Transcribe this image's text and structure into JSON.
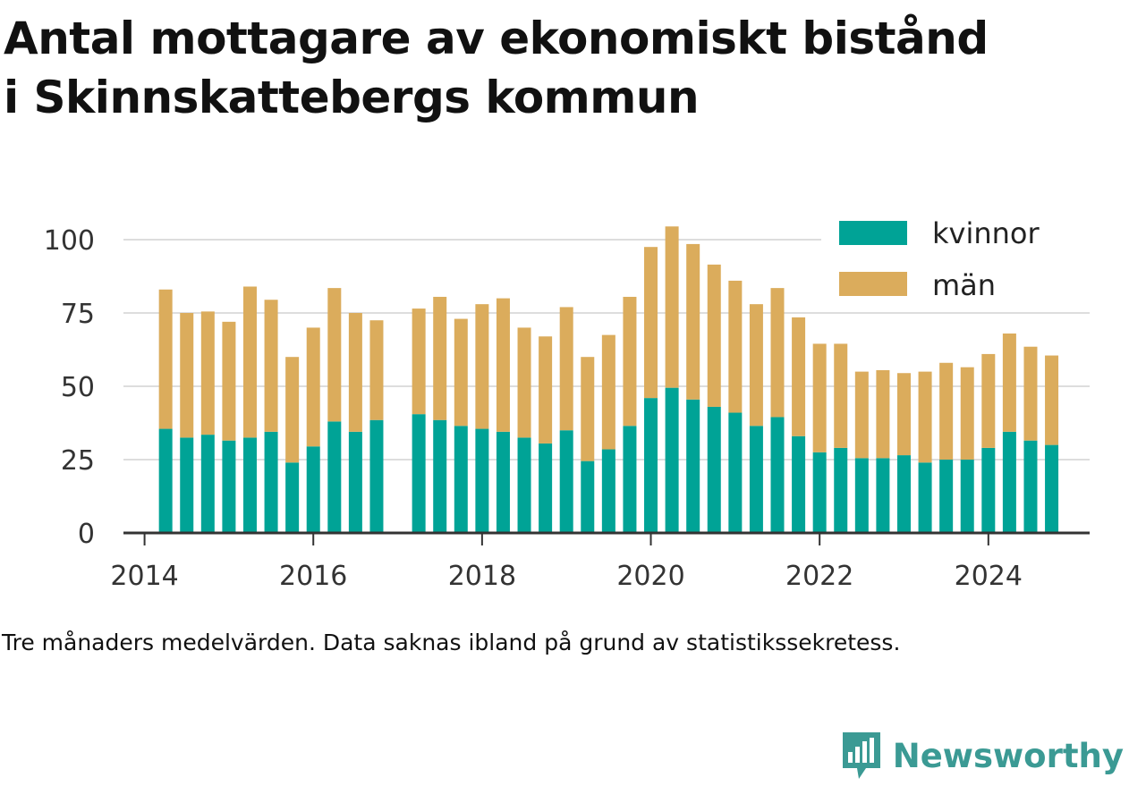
{
  "title": {
    "line1": "Antal mottagare av ekonomiskt bistånd",
    "line2": "i Skinnskattebergs kommun"
  },
  "note": "Tre månaders medelvärden. Data saknas ibland på grund av statistikssekretess.",
  "brand": {
    "name": "Newsworthy",
    "icon": "newsworthy-chat-bars-icon"
  },
  "colors": {
    "kvinnor": "#00a396",
    "man": "#dbac5c",
    "grid": "#dddddd",
    "axis": "#333333",
    "brand": "#3b9a94"
  },
  "chart_data": {
    "type": "bar",
    "stacked": true,
    "title": "",
    "xlabel": "",
    "ylabel": "",
    "ylim": [
      0,
      110
    ],
    "xlim": [
      2013.75,
      2025.2
    ],
    "yticks": [
      0,
      25,
      50,
      75,
      100
    ],
    "xticks": [
      "2014",
      "2016",
      "2018",
      "2020",
      "2022",
      "2024"
    ],
    "grid": true,
    "legend_position": "top-right",
    "x": [
      2014.25,
      2014.5,
      2014.75,
      2015.0,
      2015.25,
      2015.5,
      2015.75,
      2016.0,
      2016.25,
      2016.5,
      2016.75,
      2017.25,
      2017.5,
      2017.75,
      2018.0,
      2018.25,
      2018.5,
      2018.75,
      2019.0,
      2019.25,
      2019.5,
      2019.75,
      2020.0,
      2020.25,
      2020.5,
      2020.75,
      2021.0,
      2021.25,
      2021.5,
      2021.75,
      2022.0,
      2022.25,
      2022.5,
      2022.75,
      2023.0,
      2023.25,
      2023.5,
      2023.75,
      2024.0,
      2024.25,
      2024.5,
      2024.75
    ],
    "series": [
      {
        "name": "kvinnor",
        "color": "#00a396",
        "values": [
          35.5,
          32.5,
          33.5,
          31.5,
          32.5,
          34.5,
          24,
          29.5,
          38,
          34.5,
          38.5,
          40.5,
          38.5,
          36.5,
          35.5,
          34.5,
          32.5,
          30.5,
          35,
          24.5,
          28.5,
          36.5,
          46,
          49.5,
          45.5,
          43,
          41,
          36.5,
          39.5,
          33,
          27.5,
          29,
          25.5,
          25.5,
          26.5,
          24,
          25,
          25,
          29,
          34.5,
          31.5,
          30
        ]
      },
      {
        "name": "män",
        "color": "#dbac5c",
        "values": [
          47.5,
          42.5,
          42,
          40.5,
          51.5,
          45,
          36,
          40.5,
          45.5,
          40.5,
          34,
          36,
          42,
          36.5,
          42.5,
          45.5,
          37.5,
          36.5,
          42,
          35.5,
          39,
          44,
          51.5,
          55,
          53,
          48.5,
          45,
          41.5,
          44,
          40.5,
          37,
          35.5,
          29.5,
          30,
          28,
          31,
          33,
          31.5,
          32,
          33.5,
          32,
          30.5
        ]
      }
    ]
  }
}
